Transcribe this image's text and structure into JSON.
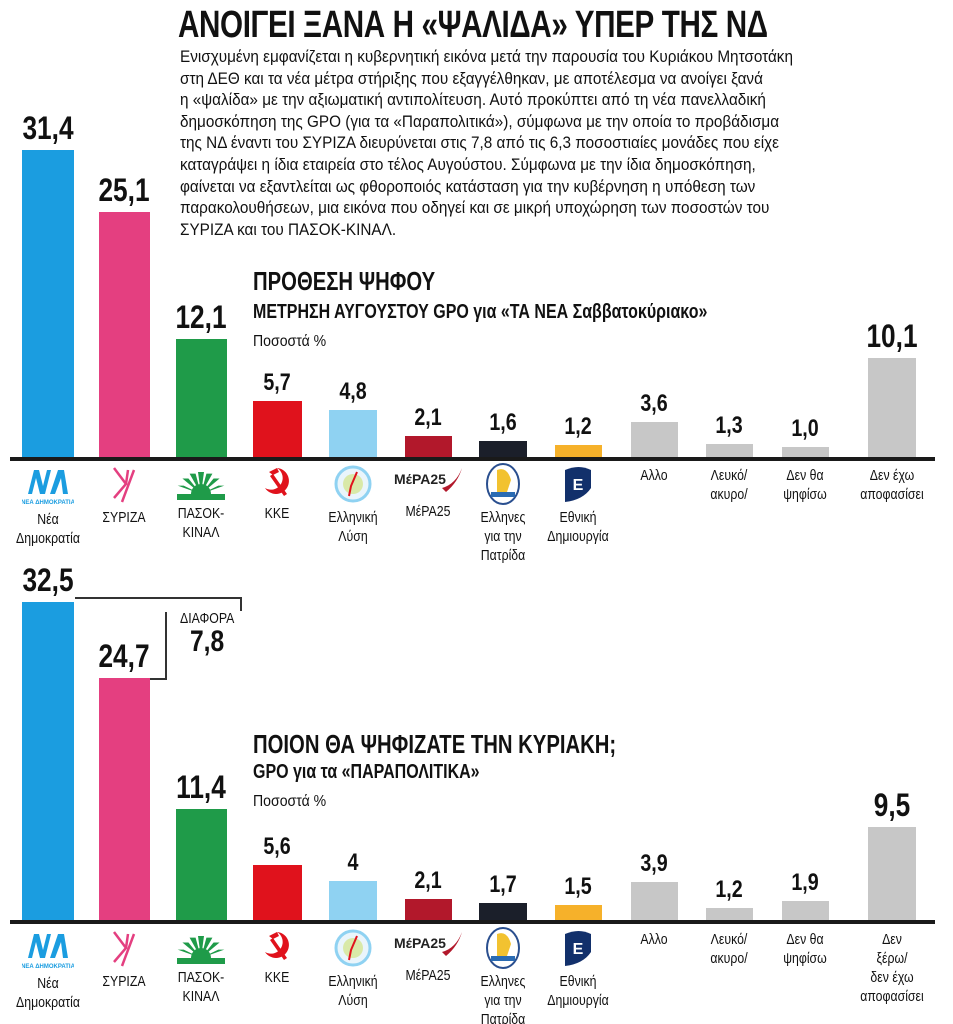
{
  "headline": "ΑΝΟΙΓΕΙ ΞΑΝΑ Η «ΨΑΛΙΔΑ» ΥΠΕΡ ΤΗΣ ΝΔ",
  "lead_lines": [
    "Ενισχυμένη εμφανίζεται η κυβερνητική εικόνα μετά την παρουσία του Κυριάκου Μητσοτάκη",
    "στη ΔΕΘ και τα νέα μέτρα στήριξης που εξαγγέλθηκαν, με αποτέλεσμα να ανοίγει ξανά",
    "η «ψαλίδα» με την αξιωματική αντιπολίτευση. Αυτό προκύπτει από τη νέα πανελλαδική",
    "δημοσκόπηση της GPO (για τα «Παραπολιτικά»), σύμφωνα με την οποία το προβάδισμα",
    "της ΝΔ έναντι του ΣΥΡΙΖΑ διευρύνεται στις 7,8 από τις 6,3 ποσοστιαίες μονάδες που είχε",
    "καταγράψει η ίδια εταιρεία στο τέλος Αυγούστου. Σύμφωνα με την ίδια δημοσκόπηση,",
    "φαίνεται να εξαντλείται ως φθοροποιός κατάσταση για την κυβέρνηση η υπόθεση των",
    "παρακολουθήσεων, μια εικόνα που οδηγεί και σε μικρή υποχώρηση των ποσοστών του",
    "ΣΥΡΙΖΑ και του ΠΑΣΟΚ-ΚΙΝΑΛ."
  ],
  "difference": {
    "label": "ΔΙΑΦΟΡΑ",
    "value": "7,8"
  },
  "parties": [
    {
      "key": "nd",
      "logo": "nd-logo",
      "color": "#1b9de0",
      "logo_text": "ΝΕΑ ΔΗΜΟΚΡΑΤΙΑ"
    },
    {
      "key": "syriza",
      "logo": "syriza-logo",
      "color": "#e43f80"
    },
    {
      "key": "pasok",
      "logo": "pasok-sun-logo",
      "color": "#1f9b49"
    },
    {
      "key": "kke",
      "logo": "hammer-sickle-logo",
      "color": "#e0121c"
    },
    {
      "key": "el",
      "logo": "elliniki-lysi-logo",
      "color": "#8fd2f2"
    },
    {
      "key": "mera25",
      "logo": "mera25-logo",
      "color": "#b2182b",
      "logo_text": "ΜέΡΑ25"
    },
    {
      "key": "ellines",
      "logo": "ellines-logo",
      "color": "#1b1f2a"
    },
    {
      "key": "ethniki",
      "logo": "ethniki-dimiourgia-logo",
      "color": "#f6b12a",
      "logo_text": "Ε"
    },
    {
      "key": "allo",
      "logo": null,
      "color": "#c7c7c7"
    },
    {
      "key": "lefko",
      "logo": null,
      "color": "#c7c7c7"
    },
    {
      "key": "den_tha",
      "logo": null,
      "color": "#c7c7c7"
    },
    {
      "key": "den_exo",
      "logo": null,
      "color": "#c7c7c7"
    }
  ],
  "chart_data": [
    {
      "type": "bar",
      "title": "ΠΡΟΘΕΣΗ ΨΗΦΟΥ",
      "subtitle": "ΜΕΤΡΗΣΗ ΑΥΓΟΥΣΤΟΥ GPO για «ΤΑ ΝΕΑ Σαββατοκύριακο»",
      "ylabel": "Ποσοστά %",
      "categories": [
        "Νέα\nΔημοκρατία",
        "ΣΥΡΙΖΑ",
        "ΠΑΣΟΚ-\nΚΙΝΑΛ",
        "ΚΚΕ",
        "Ελληνική\nΛύση",
        "ΜέΡΑ25",
        "Ελληνες\nγια την\nΠατρίδα",
        "Εθνική\nΔημιουργία",
        "Αλλο",
        "Λευκό/\nακυρο/",
        "Δεν θα\nψηφίσω",
        "Δεν έχω\nαποφασίσει"
      ],
      "values": [
        31.4,
        25.1,
        12.1,
        5.7,
        4.8,
        2.1,
        1.6,
        1.2,
        3.6,
        1.3,
        1.0,
        10.1
      ],
      "value_labels": [
        "31,4",
        "25,1",
        "12,1",
        "5,7",
        "4,8",
        "2,1",
        "1,6",
        "1,2",
        "3,6",
        "1,3",
        "1,0",
        "10,1"
      ],
      "ylim": [
        0,
        35
      ],
      "grid": false
    },
    {
      "type": "bar",
      "title": "ΠΟΙΟΝ ΘΑ ΨΗΦΙΖΑΤΕ ΤΗΝ ΚΥΡΙΑΚΗ;",
      "subtitle": "GPO για τα «ΠΑΡΑΠΟΛΙΤΙΚΑ»",
      "ylabel": "Ποσοστά %",
      "categories": [
        "Νέα\nΔημοκρατία",
        "ΣΥΡΙΖΑ",
        "ΠΑΣΟΚ-\nΚΙΝΑΛ",
        "ΚΚΕ",
        "Ελληνική\nΛύση",
        "ΜέΡΑ25",
        "Ελληνες\nγια την\nΠατρίδα",
        "Εθνική\nΔημιουργία",
        "Αλλο",
        "Λευκό/\nακυρο/",
        "Δεν θα\nψηφίσω",
        "Δεν\nξέρω/\nδεν έχω\nαποφασίσει"
      ],
      "values": [
        32.5,
        24.7,
        11.4,
        5.6,
        4,
        2.1,
        1.7,
        1.5,
        3.9,
        1.2,
        1.9,
        9.5
      ],
      "value_labels": [
        "32,5",
        "24,7",
        "11,4",
        "5,6",
        "4",
        "2,1",
        "1,7",
        "1,5",
        "3,9",
        "1,2",
        "1,9",
        "9,5"
      ],
      "ylim": [
        0,
        35
      ],
      "grid": false
    }
  ]
}
